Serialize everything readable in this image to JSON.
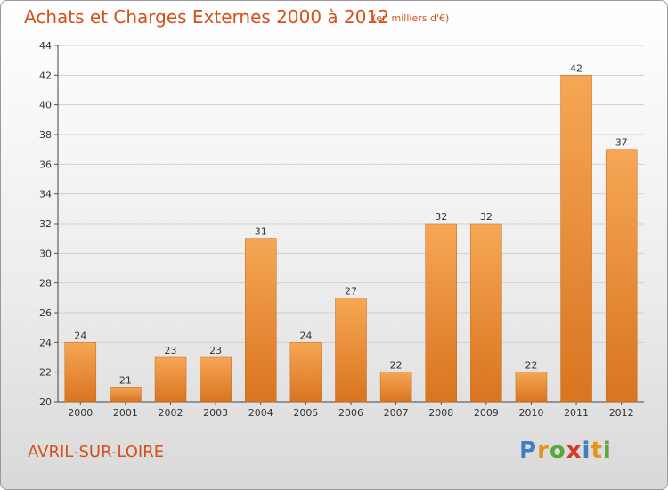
{
  "header": {
    "title": "Achats et Charges Externes 2000 à 2012",
    "unit": "(en milliers d'€)"
  },
  "footer": {
    "commune": "AVRIL-SUR-LOIRE",
    "logo_text": "Proxiti"
  },
  "colors": {
    "accent": "#d2521a",
    "bar_top": "#f6a755",
    "bar_bottom": "#d9741f"
  },
  "chart_data": {
    "type": "bar",
    "title": "Achats et Charges Externes 2000 à 2012",
    "subtitle": "(en milliers d'€)",
    "categories": [
      "2000",
      "2001",
      "2002",
      "2003",
      "2004",
      "2005",
      "2006",
      "2007",
      "2008",
      "2009",
      "2010",
      "2011",
      "2012"
    ],
    "values": [
      24,
      21,
      23,
      23,
      31,
      24,
      27,
      22,
      32,
      32,
      22,
      42,
      37
    ],
    "ylim": [
      20,
      44
    ],
    "yticks": [
      20,
      22,
      24,
      26,
      28,
      30,
      32,
      34,
      36,
      38,
      40,
      42,
      44
    ],
    "grid": true,
    "data_labels": true
  }
}
